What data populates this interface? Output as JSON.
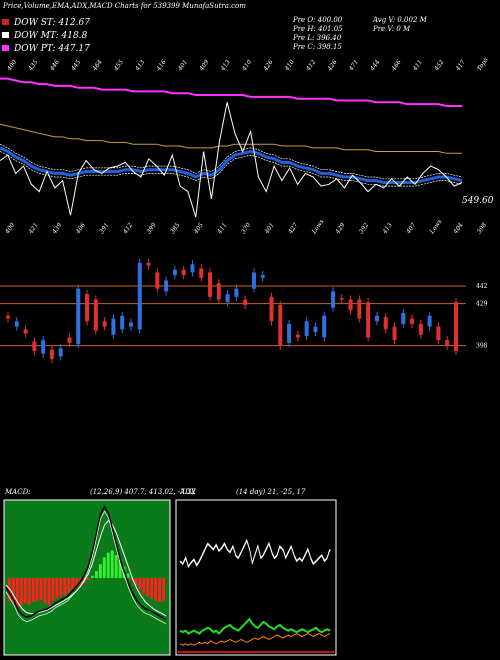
{
  "header": {
    "title": "Price,Volume,EMA,ADX,MACD Charts for 539399 MunafaSutra.com"
  },
  "legend": [
    {
      "label": "DOW ST: 412.67",
      "color": "#d02020"
    },
    {
      "label": "DOW MT: 418.8",
      "color": "#ffffff"
    },
    {
      "label": "DOW PT: 447.17",
      "color": "#ff33ff"
    }
  ],
  "ohlc": {
    "col1": [
      "Pre O: 400.00",
      "Pre H: 401.05",
      "Pre L: 396.40",
      "Pre C: 398.15"
    ],
    "col2": [
      "Avg V: 0.002 M",
      "Pre V: 0 M"
    ]
  },
  "colors": {
    "up": "#3070e0",
    "down": "#e03030",
    "ema_fast": "#2060e0",
    "ema_pt": "#ff33ff",
    "ema_mt": "#c8a040",
    "level_line": "#c86420",
    "macd_bg": "#0a7a1a",
    "adx_green": "#20dd20",
    "adx_orange": "#ff8000",
    "adx_red": "#ff2020"
  },
  "chart_data": [
    {
      "type": "line",
      "name": "price_ema",
      "top_ticks": [
        "400",
        "435",
        "446",
        "445",
        "464",
        "455",
        "413",
        "416",
        "401",
        "409",
        "413",
        "410",
        "426",
        "410",
        "412",
        "426",
        "471",
        "444",
        "466",
        "411",
        "452",
        "417",
        "Tops"
      ],
      "bottom_ticks": [
        "400",
        "421",
        "439",
        "406",
        "391",
        "412",
        "399",
        "385",
        "405",
        "411",
        "370",
        "401",
        "427",
        "Lows",
        "429",
        "392",
        "413",
        "407",
        "Lows",
        "404",
        "398"
      ],
      "last_price": "549.60",
      "price": [
        405,
        408,
        398,
        402,
        392,
        388,
        399,
        390,
        394,
        375,
        398,
        405,
        400,
        398,
        401,
        402,
        404,
        399,
        396,
        406,
        402,
        397,
        408,
        391,
        388,
        374,
        410,
        384,
        415,
        437,
        420,
        410,
        421,
        396,
        388,
        402,
        394,
        401,
        392,
        398,
        396,
        391,
        392,
        395,
        390,
        397,
        393,
        388,
        392,
        390,
        395,
        391,
        396,
        392,
        398,
        402,
        400,
        396,
        391,
        393
      ],
      "ema_fast": [
        412,
        410,
        407,
        405,
        402,
        400,
        399,
        398,
        398,
        397,
        398,
        399,
        399,
        399,
        399,
        399,
        400,
        400,
        399,
        400,
        400,
        400,
        400,
        399,
        398,
        396,
        398,
        397,
        400,
        405,
        408,
        409,
        410,
        409,
        407,
        406,
        404,
        404,
        402,
        401,
        400,
        398,
        398,
        397,
        396,
        396,
        395,
        394,
        394,
        393,
        393,
        393,
        393,
        393,
        394,
        395,
        396,
        396,
        395,
        394
      ],
      "ema_pt": [
        450,
        450,
        449,
        448,
        448,
        447,
        447,
        446,
        446,
        446,
        445,
        445,
        445,
        444,
        444,
        444,
        444,
        443,
        443,
        443,
        443,
        443,
        442,
        442,
        442,
        441,
        441,
        441,
        441,
        441,
        441,
        441,
        440,
        440,
        440,
        440,
        440,
        440,
        439,
        439,
        439,
        439,
        439,
        438,
        438,
        438,
        438,
        438,
        437,
        437,
        437,
        437,
        436,
        436,
        436,
        436,
        436,
        435,
        435,
        435
      ],
      "ema_mt": [
        425,
        424,
        423,
        422,
        421,
        420,
        419,
        418,
        418,
        417,
        417,
        416,
        416,
        416,
        415,
        415,
        415,
        414,
        414,
        414,
        414,
        413,
        413,
        413,
        412,
        412,
        412,
        412,
        413,
        413,
        414,
        414,
        414,
        414,
        414,
        414,
        413,
        413,
        413,
        413,
        412,
        412,
        412,
        412,
        411,
        411,
        411,
        411,
        410,
        410,
        410,
        410,
        410,
        410,
        410,
        410,
        410,
        409,
        409,
        409
      ]
    },
    {
      "type": "bar",
      "name": "volume_candles",
      "level_labels": [
        "442",
        "429",
        "398"
      ],
      "candles": [
        {
          "o": 420,
          "c": 418
        },
        {
          "o": 412,
          "c": 416
        },
        {
          "o": 410,
          "c": 407
        },
        {
          "o": 401,
          "c": 394
        },
        {
          "o": 392,
          "c": 402
        },
        {
          "o": 395,
          "c": 388
        },
        {
          "o": 390,
          "c": 396
        },
        {
          "o": 404,
          "c": 400
        },
        {
          "o": 399,
          "c": 440
        },
        {
          "o": 436,
          "c": 416
        },
        {
          "o": 432,
          "c": 409
        },
        {
          "o": 416,
          "c": 412
        },
        {
          "o": 406,
          "c": 418
        },
        {
          "o": 410,
          "c": 420
        },
        {
          "o": 412,
          "c": 415
        },
        {
          "o": 410,
          "c": 459
        },
        {
          "o": 459,
          "c": 457
        },
        {
          "o": 452,
          "c": 440
        },
        {
          "o": 438,
          "c": 446
        },
        {
          "o": 450,
          "c": 454
        },
        {
          "o": 454,
          "c": 450
        },
        {
          "o": 452,
          "c": 458
        },
        {
          "o": 455,
          "c": 448
        },
        {
          "o": 452,
          "c": 434
        },
        {
          "o": 444,
          "c": 432
        },
        {
          "o": 430,
          "c": 436
        },
        {
          "o": 434,
          "c": 440
        },
        {
          "o": 432,
          "c": 428
        },
        {
          "o": 440,
          "c": 452
        },
        {
          "o": 448,
          "c": 450
        },
        {
          "o": 434,
          "c": 416
        },
        {
          "o": 428,
          "c": 398
        },
        {
          "o": 400,
          "c": 414
        },
        {
          "o": 406,
          "c": 404
        },
        {
          "o": 405,
          "c": 416
        },
        {
          "o": 408,
          "c": 412
        },
        {
          "o": 404,
          "c": 420
        },
        {
          "o": 426,
          "c": 438
        },
        {
          "o": 433,
          "c": 432
        },
        {
          "o": 432,
          "c": 424
        },
        {
          "o": 432,
          "c": 418
        },
        {
          "o": 430,
          "c": 404
        },
        {
          "o": 416,
          "c": 420
        },
        {
          "o": 419,
          "c": 410
        },
        {
          "o": 412,
          "c": 402
        },
        {
          "o": 414,
          "c": 422
        },
        {
          "o": 418,
          "c": 414
        },
        {
          "o": 414,
          "c": 406
        },
        {
          "o": 412,
          "c": 420
        },
        {
          "o": 412,
          "c": 402
        },
        {
          "o": 402,
          "c": 398
        },
        {
          "o": 430,
          "c": 394
        }
      ]
    },
    {
      "type": "area",
      "name": "MACD",
      "label": "MACD:",
      "params": "(12,26,9) 407.7, 413.02, -7.32",
      "hist": [
        -20,
        -22,
        -25,
        -24,
        -22,
        -23,
        -21,
        -20,
        -19,
        -22,
        -24,
        -20,
        -18,
        -16,
        -15,
        -13,
        -10,
        -8,
        -6,
        -4,
        -2,
        2,
        6,
        12,
        18,
        22,
        24,
        20,
        16,
        10,
        4,
        -2,
        -6,
        -10,
        -14,
        -16,
        -18,
        -20,
        -21,
        -20
      ],
      "macd": [
        -8,
        -14,
        -20,
        -28,
        -32,
        -34,
        -33,
        -31,
        -29,
        -28,
        -27,
        -25,
        -22,
        -20,
        -18,
        -16,
        -12,
        -8,
        -4,
        2,
        10,
        22,
        38,
        55,
        62,
        56,
        42,
        28,
        14,
        4,
        -6,
        -14,
        -20,
        -24,
        -27,
        -28,
        -30,
        -32,
        -34,
        -36
      ],
      "signal": [
        -6,
        -10,
        -16,
        -22,
        -27,
        -30,
        -31,
        -31,
        -30,
        -29,
        -28,
        -26,
        -24,
        -22,
        -20,
        -18,
        -15,
        -12,
        -8,
        -3,
        3,
        12,
        24,
        36,
        46,
        50,
        46,
        38,
        28,
        18,
        8,
        -2,
        -10,
        -16,
        -21,
        -24,
        -27,
        -29,
        -31,
        -33
      ]
    },
    {
      "type": "line",
      "name": "ADX",
      "label": "ADX",
      "params": "(14 day) 21, -25, 17",
      "pdi": [
        14,
        13,
        14,
        12,
        13,
        14,
        13,
        12,
        14,
        15,
        16,
        15,
        13,
        14,
        12,
        14,
        16,
        17,
        18,
        16,
        15,
        14,
        16,
        18,
        20,
        22,
        19,
        17,
        16,
        18,
        20,
        19,
        17,
        16,
        15,
        17,
        18,
        16,
        15,
        14,
        15,
        14,
        13,
        14,
        15,
        14,
        13,
        14,
        15,
        16,
        14,
        13,
        14,
        15,
        14
      ],
      "mdi": [
        5,
        4,
        5,
        4,
        5,
        4,
        5,
        6,
        5,
        6,
        5,
        7,
        6,
        5,
        6,
        7,
        6,
        7,
        8,
        7,
        6,
        7,
        8,
        7,
        6,
        7,
        8,
        9,
        8,
        9,
        10,
        9,
        8,
        9,
        10,
        11,
        10,
        9,
        10,
        11,
        10,
        11,
        12,
        11,
        10,
        11,
        12,
        11,
        10,
        11,
        12,
        11,
        10,
        11,
        12
      ],
      "adx": [
        62,
        60,
        64,
        58,
        61,
        63,
        59,
        62,
        66,
        70,
        74,
        72,
        70,
        73,
        69,
        71,
        74,
        70,
        68,
        72,
        66,
        64,
        68,
        72,
        76,
        70,
        60,
        66,
        72,
        64,
        66,
        70,
        74,
        68,
        64,
        66,
        72,
        70,
        64,
        68,
        72,
        66,
        62,
        64,
        62,
        66,
        70,
        64,
        60,
        62,
        64,
        66,
        62,
        64,
        70
      ]
    }
  ]
}
